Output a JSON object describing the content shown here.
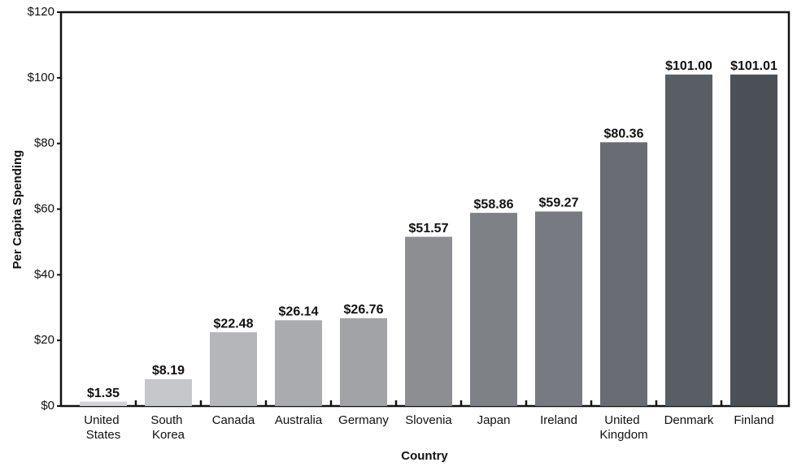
{
  "chart_data": {
    "type": "bar",
    "x_label": "Country",
    "y_label": "Per Capita Spending",
    "categories": [
      "United States",
      "South Korea",
      "Canada",
      "Australia",
      "Germany",
      "Slovenia",
      "Japan",
      "Ireland",
      "United Kingdom",
      "Denmark",
      "Finland"
    ],
    "values": [
      1.35,
      8.19,
      22.48,
      26.14,
      26.76,
      51.57,
      58.86,
      59.27,
      80.36,
      101.0,
      101.01
    ],
    "value_labels": [
      "$1.35",
      "$8.19",
      "$22.48",
      "$26.14",
      "$26.76",
      "$51.57",
      "$58.86",
      "$59.27",
      "$80.36",
      "$101.00",
      "$101.01"
    ],
    "colors": [
      "#d2d3d6",
      "#c6c7cb",
      "#b5b6ba",
      "#aaabaf",
      "#a2a3a7",
      "#8c8e92",
      "#7e8186",
      "#777a80",
      "#696c73",
      "#595d64",
      "#4b4f56"
    ],
    "ylim": [
      0,
      120
    ],
    "yticks": [
      {
        "value": 0,
        "label": "$0"
      },
      {
        "value": 20,
        "label": "$20"
      },
      {
        "value": 40,
        "label": "$40"
      },
      {
        "value": 60,
        "label": "$60"
      },
      {
        "value": 80,
        "label": "$80"
      },
      {
        "value": 100,
        "label": "$100"
      },
      {
        "value": 120,
        "label": "$120"
      }
    ]
  }
}
